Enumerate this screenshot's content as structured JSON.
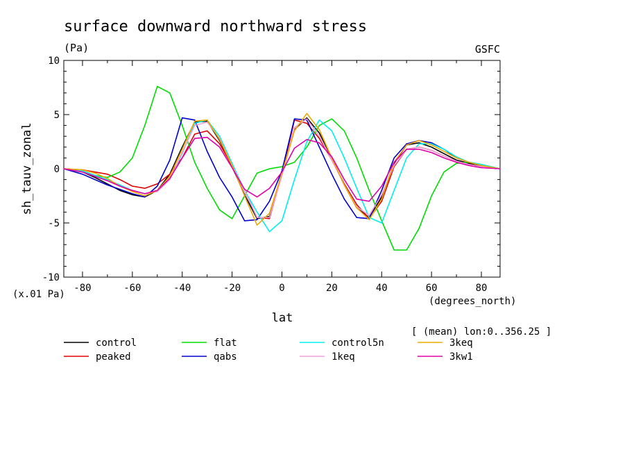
{
  "chart_data": {
    "type": "line",
    "title": "surface downward northward stress",
    "units": "(Pa)",
    "source": "GSFC",
    "xlabel": "lat",
    "ylabel": "sh_tauv_zonal",
    "x_units": "(degrees_north)",
    "y_scale_note": "(x.01 Pa)",
    "average_note": "[ (mean) lon:0..356.25 ]",
    "xlim": [
      -87.5,
      87.5
    ],
    "ylim": [
      -10,
      10
    ],
    "xticks": [
      "-80",
      "-60",
      "-40",
      "-20",
      "0",
      "20",
      "40",
      "60",
      "80"
    ],
    "yticks": [
      "10",
      "5",
      "0",
      "-5",
      "-10"
    ],
    "x": [
      -87.5,
      -80,
      -75,
      -70,
      -65,
      -60,
      -55,
      -50,
      -45,
      -40,
      -35,
      -30,
      -25,
      -20,
      -15,
      -10,
      -5,
      0,
      5,
      10,
      15,
      20,
      25,
      30,
      35,
      40,
      45,
      50,
      55,
      60,
      65,
      70,
      75,
      80,
      87.5
    ],
    "series": [
      {
        "name": "control",
        "color": "#000000",
        "values": [
          0,
          -0.3,
          -0.8,
          -1.4,
          -2.0,
          -2.4,
          -2.6,
          -2.0,
          -0.5,
          2.0,
          4.3,
          4.4,
          2.6,
          0.2,
          -2.4,
          -4.6,
          -4.4,
          -0.5,
          3.6,
          4.7,
          3.3,
          1.0,
          -1.5,
          -3.6,
          -4.5,
          -2.6,
          0.5,
          2.2,
          2.4,
          2.0,
          1.4,
          0.8,
          0.5,
          0.2,
          0
        ]
      },
      {
        "name": "peaked",
        "color": "#e00000",
        "values": [
          0,
          -0.1,
          -0.3,
          -0.5,
          -1.0,
          -1.6,
          -1.8,
          -1.4,
          -0.5,
          1.0,
          3.2,
          3.5,
          2.3,
          0.3,
          -2.0,
          -4.5,
          -4.6,
          -0.5,
          4.5,
          4.2,
          2.8,
          0.8,
          -1.4,
          -3.3,
          -4.6,
          -3.0,
          0.2,
          1.8,
          2.0,
          1.7,
          1.2,
          0.7,
          0.4,
          0.2,
          0
        ]
      },
      {
        "name": "flat",
        "color": "#00dd00",
        "values": [
          0,
          -0.2,
          -0.6,
          -0.8,
          -0.3,
          1.0,
          4.0,
          7.6,
          7.0,
          4.0,
          0.6,
          -1.8,
          -3.8,
          -4.6,
          -2.5,
          -0.4,
          0,
          0.2,
          0.6,
          2.0,
          4.0,
          4.6,
          3.5,
          1.0,
          -2.0,
          -4.8,
          -7.5,
          -7.5,
          -5.5,
          -2.5,
          -0.3,
          0.5,
          0.6,
          0.4,
          0
        ]
      },
      {
        "name": "qabs",
        "color": "#0000cc",
        "values": [
          0,
          -0.5,
          -1.0,
          -1.5,
          -1.9,
          -2.3,
          -2.6,
          -1.6,
          0.8,
          4.7,
          4.5,
          1.6,
          -0.8,
          -2.6,
          -4.8,
          -4.7,
          -3.0,
          -0.2,
          4.6,
          4.5,
          2.0,
          -0.5,
          -2.8,
          -4.5,
          -4.6,
          -2.0,
          1.0,
          2.3,
          2.6,
          2.4,
          1.8,
          1.0,
          0.6,
          0.3,
          0
        ]
      },
      {
        "name": "control5n",
        "color": "#00eeee",
        "values": [
          0,
          -0.2,
          -0.6,
          -1.0,
          -1.5,
          -2.0,
          -2.3,
          -2.1,
          -1.0,
          1.4,
          4.2,
          4.5,
          3.0,
          0.5,
          -2.0,
          -4.0,
          -5.8,
          -4.8,
          -1.0,
          2.5,
          4.5,
          3.5,
          1.0,
          -1.8,
          -4.5,
          -5.0,
          -2.0,
          1.0,
          2.3,
          2.3,
          1.8,
          1.1,
          0.6,
          0.4,
          0
        ]
      },
      {
        "name": "1keq",
        "color": "#f0a0d8",
        "values": [
          0,
          -0.3,
          -0.7,
          -1.1,
          -1.6,
          -2.0,
          -2.3,
          -2.1,
          -1.0,
          1.5,
          4.0,
          4.3,
          2.8,
          0.3,
          -2.0,
          -4.5,
          -4.5,
          -0.6,
          3.8,
          4.6,
          3.0,
          0.8,
          -1.5,
          -3.5,
          -4.3,
          -2.4,
          0.3,
          1.8,
          2.0,
          1.7,
          1.2,
          0.7,
          0.4,
          0.2,
          0
        ]
      },
      {
        "name": "3keq",
        "color": "#f0a800",
        "values": [
          0,
          -0.1,
          -0.4,
          -0.9,
          -1.6,
          -2.1,
          -2.5,
          -2.0,
          -0.7,
          1.8,
          4.4,
          4.5,
          2.7,
          0.3,
          -2.5,
          -5.2,
          -4.1,
          -0.4,
          3.5,
          5.1,
          3.6,
          1.0,
          -1.5,
          -3.6,
          -4.7,
          -2.8,
          0.6,
          2.2,
          2.6,
          2.2,
          1.6,
          1.0,
          0.6,
          0.3,
          0
        ]
      },
      {
        "name": "3kw1",
        "color": "#e000aa",
        "values": [
          0,
          -0.3,
          -0.7,
          -1.1,
          -1.6,
          -2.0,
          -2.3,
          -2.0,
          -0.9,
          1.0,
          2.8,
          2.9,
          2.0,
          0.1,
          -1.9,
          -2.6,
          -1.8,
          -0.3,
          1.9,
          2.7,
          2.4,
          1.1,
          -1.0,
          -2.8,
          -3.0,
          -1.6,
          0.6,
          1.8,
          1.8,
          1.5,
          1.0,
          0.6,
          0.3,
          0.1,
          0
        ]
      }
    ]
  }
}
